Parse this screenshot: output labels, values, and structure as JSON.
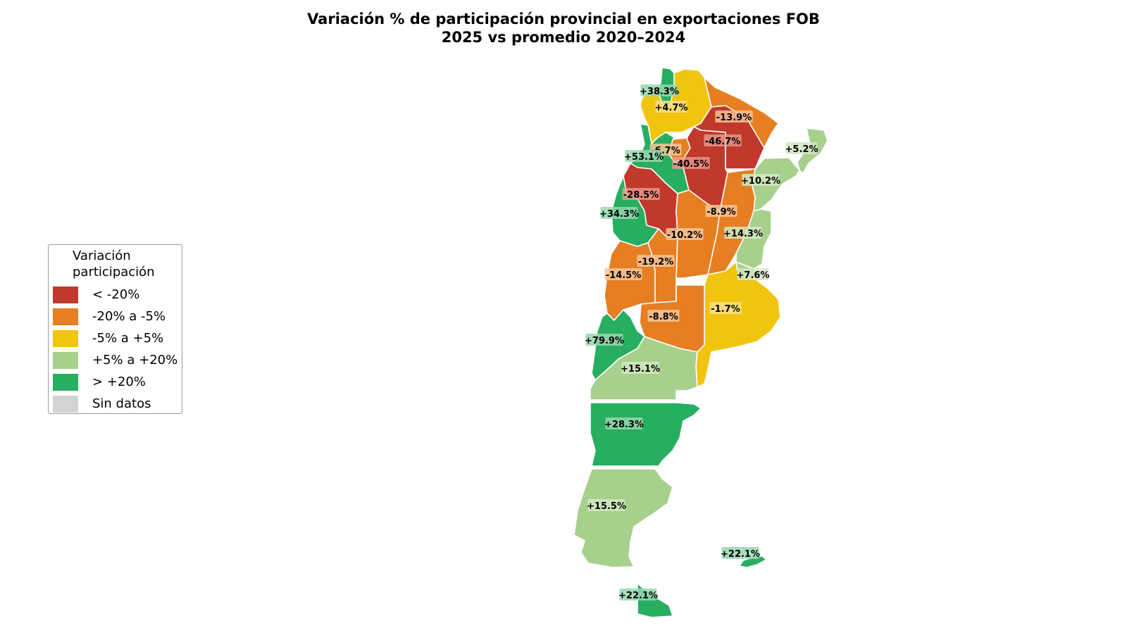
{
  "title": {
    "line1": "Variación % de participación provincial en exportaciones FOB",
    "line2": "2025 vs promedio 2020–2024"
  },
  "colors": {
    "lt_-20": "#c0392b",
    "-20_-5": "#e67e22",
    "-5_+5": "#f1c40f",
    "+5_+20": "#a8d08d",
    "gt_+20": "#27ae60",
    "sin_datos": "#d3d3d3"
  },
  "legend": {
    "title": "Variación\nparticipación",
    "items": [
      {
        "label": "< -20%",
        "class": "lt_-20"
      },
      {
        "label": "-20% a -5%",
        "class": "-20_-5"
      },
      {
        "label": "-5% a +5%",
        "class": "-5_+5"
      },
      {
        "label": "+5% a +20%",
        "class": "+5_+20"
      },
      {
        "label": "> +20%",
        "class": "gt_+20"
      },
      {
        "label": "Sin datos",
        "class": "sin_datos"
      }
    ]
  },
  "provinces": [
    {
      "key": "jujuy",
      "value": "+38.3%",
      "class": "gt_+20"
    },
    {
      "key": "salta",
      "value": "+4.7%",
      "class": "-5_+5"
    },
    {
      "key": "formosa",
      "value": "-13.9%",
      "class": "-20_-5"
    },
    {
      "key": "chaco",
      "value": "-46.7%",
      "class": "lt_-20"
    },
    {
      "key": "misiones",
      "value": "+5.2%",
      "class": "+5_+20"
    },
    {
      "key": "tucuman",
      "value": "-6.7%",
      "class": "-20_-5"
    },
    {
      "key": "catamarca",
      "value": "+53.1%",
      "class": "gt_+20"
    },
    {
      "key": "santiago",
      "value": "-40.5%",
      "class": "lt_-20"
    },
    {
      "key": "corrientes",
      "value": "+10.2%",
      "class": "+5_+20"
    },
    {
      "key": "la_rioja",
      "value": "-28.5%",
      "class": "lt_-20"
    },
    {
      "key": "santa_fe",
      "value": "-8.9%",
      "class": "-20_-5"
    },
    {
      "key": "san_juan",
      "value": "+34.3%",
      "class": "gt_+20"
    },
    {
      "key": "entre_rios",
      "value": "+14.3%",
      "class": "+5_+20"
    },
    {
      "key": "cordoba",
      "value": "-10.2%",
      "class": "-20_-5"
    },
    {
      "key": "san_luis",
      "value": "-19.2%",
      "class": "-20_-5"
    },
    {
      "key": "caba",
      "value": "+7.6%",
      "class": "+5_+20"
    },
    {
      "key": "mendoza",
      "value": "-14.5%",
      "class": "-20_-5"
    },
    {
      "key": "buenos_aires",
      "value": "-1.7%",
      "class": "-5_+5"
    },
    {
      "key": "la_pampa",
      "value": "-8.8%",
      "class": "-20_-5"
    },
    {
      "key": "neuquen",
      "value": "+79.9%",
      "class": "gt_+20"
    },
    {
      "key": "rio_negro",
      "value": "+15.1%",
      "class": "+5_+20"
    },
    {
      "key": "chubut",
      "value": "+28.3%",
      "class": "gt_+20"
    },
    {
      "key": "santa_cruz",
      "value": "+15.5%",
      "class": "+5_+20"
    },
    {
      "key": "malvinas",
      "value": "+22.1%",
      "class": "gt_+20"
    },
    {
      "key": "tierra_del_fuego",
      "value": "+22.1%",
      "class": "gt_+20"
    }
  ]
}
